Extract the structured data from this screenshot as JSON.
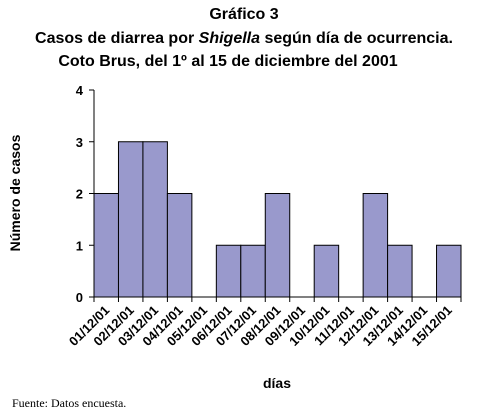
{
  "header": {
    "line1": "Gráfico 3",
    "line2_pre": "Casos de diarrea por ",
    "line2_italic": "Shigella",
    "line2_post": " según día de ocurrencia.",
    "line3": "Coto Brus, del 1º al 15 de diciembre del 2001"
  },
  "source": "Fuente: Datos encuesta.",
  "chart_data": {
    "type": "bar",
    "title": "Casos de diarrea por Shigella según día de ocurrencia. Coto Brus, del 1º al 15 de diciembre del 2001",
    "xlabel": "días",
    "ylabel": "Número de casos",
    "categories": [
      "01/12/01",
      "02/12/01",
      "03/12/01",
      "04/12/01",
      "05/12/01",
      "06/12/01",
      "07/12/01",
      "08/12/01",
      "09/12/01",
      "10/12/01",
      "11/12/01",
      "12/12/01",
      "13/12/01",
      "14/12/01",
      "15/12/01"
    ],
    "values": [
      2,
      3,
      3,
      2,
      0,
      1,
      1,
      2,
      0,
      1,
      0,
      2,
      1,
      0,
      1
    ],
    "ylim": [
      0,
      4
    ],
    "yticks": [
      0,
      1,
      2,
      3,
      4
    ],
    "grid": false,
    "legend": "none",
    "colors": {
      "bar_fill": "#9999cc",
      "bar_stroke": "#000000",
      "axis": "#000000"
    }
  }
}
